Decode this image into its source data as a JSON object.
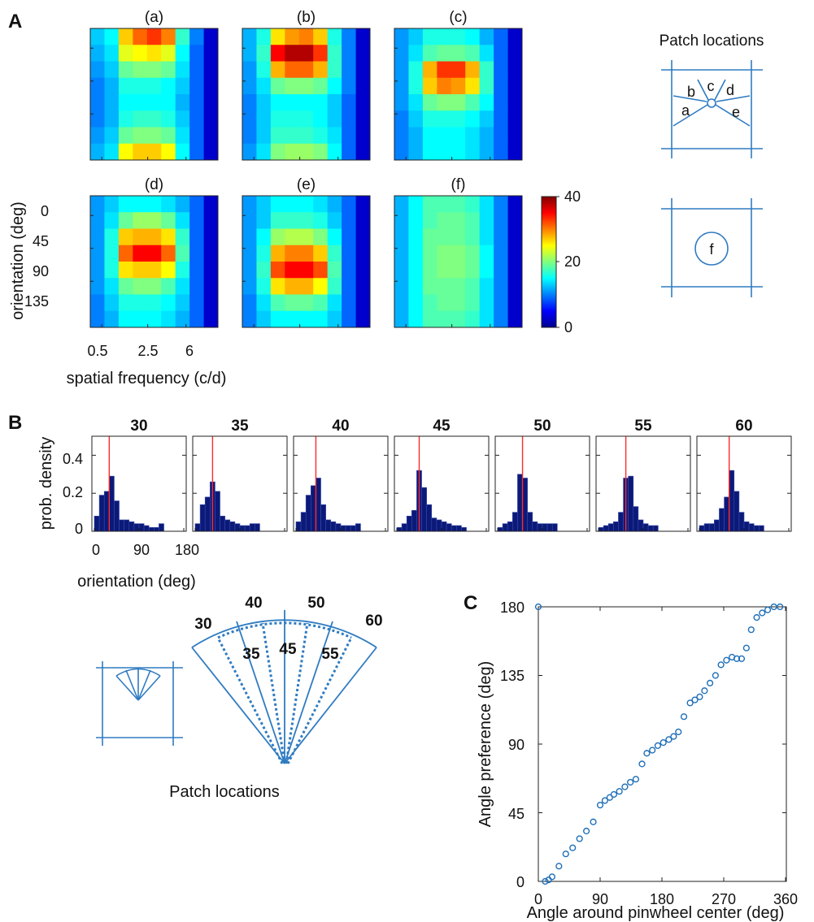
{
  "panel_labels": {
    "A": "A",
    "B": "B",
    "C": "C"
  },
  "panelA": {
    "subplot_titles": [
      "(a)",
      "(b)",
      "(c)",
      "(d)",
      "(e)",
      "(f)"
    ],
    "ylabel": "orientation (deg)",
    "xlabel": "spatial frequency (c/d)",
    "yticks": [
      "0",
      "45",
      "90",
      "135"
    ],
    "xticks": [
      "0.5",
      "2.5",
      "6"
    ],
    "colorbar_ticks": [
      "40",
      "20",
      "0"
    ],
    "patch_title": "Patch locations",
    "patch_labels": [
      "a",
      "b",
      "c",
      "d",
      "e"
    ],
    "patch_label_f": "f"
  },
  "panelB": {
    "ylabel": "prob. density",
    "xlabel": "orientation (deg)",
    "yticks": [
      "0.4",
      "0.2",
      "0"
    ],
    "xticks": [
      "0",
      "90",
      "180"
    ],
    "patch_caption": "Patch locations",
    "fan_outer_labels": [
      "30",
      "40",
      "50",
      "60"
    ],
    "fan_inner_labels": [
      "35",
      "45",
      "55"
    ]
  },
  "panelC": {
    "xlabel": "Angle around pinwheel center (deg)",
    "ylabel": "Angle preference (deg)",
    "xticks": [
      "0",
      "90",
      "180",
      "270",
      "360"
    ],
    "yticks": [
      "180",
      "135",
      "90",
      "45",
      "0"
    ]
  },
  "colors": {
    "line": "#2f7bc1",
    "bar": "#0b1a78",
    "marker": "#1f6fb8",
    "preferred": "#ff2a2a"
  },
  "chart_data": [
    {
      "type": "heatmap",
      "id": "A",
      "value_range": [
        0,
        40
      ],
      "colormap": "jet",
      "x": [
        "0.5",
        "2.5",
        "6"
      ],
      "y_range": [
        0,
        180
      ],
      "maps": [
        {
          "title": "(a)",
          "values": [
            [
              13,
              15,
              27,
              31,
              33,
              30,
              17,
              10,
              3
            ],
            [
              12,
              14,
              24,
              25,
              26,
              24,
              15,
              9,
              3
            ],
            [
              11,
              13,
              19,
              20,
              20,
              19,
              14,
              9,
              3
            ],
            [
              10,
              12,
              16,
              16,
              16,
              15,
              13,
              9,
              3
            ],
            [
              10,
              12,
              15,
              15,
              15,
              15,
              12,
              9,
              3
            ],
            [
              10,
              12,
              16,
              17,
              17,
              16,
              13,
              9,
              3
            ],
            [
              11,
              13,
              19,
              20,
              20,
              19,
              14,
              9,
              3
            ],
            [
              12,
              14,
              25,
              27,
              27,
              25,
              15,
              9,
              3
            ]
          ]
        },
        {
          "title": "(b)",
          "values": [
            [
              12,
              16,
              26,
              29,
              30,
              27,
              16,
              10,
              3
            ],
            [
              12,
              17,
              35,
              38,
              38,
              33,
              17,
              10,
              3
            ],
            [
              11,
              16,
              28,
              31,
              31,
              28,
              17,
              10,
              3
            ],
            [
              11,
              14,
              19,
              20,
              20,
              19,
              15,
              10,
              3
            ],
            [
              10,
              13,
              15,
              15,
              15,
              15,
              13,
              9,
              3
            ],
            [
              10,
              13,
              16,
              16,
              16,
              15,
              13,
              9,
              3
            ],
            [
              10,
              13,
              17,
              17,
              17,
              16,
              14,
              9,
              3
            ],
            [
              11,
              14,
              20,
              21,
              21,
              20,
              15,
              9,
              3
            ]
          ]
        },
        {
          "title": "(c)",
          "values": [
            [
              11,
              13,
              16,
              16,
              16,
              15,
              12,
              9,
              3
            ],
            [
              11,
              14,
              18,
              19,
              19,
              18,
              14,
              9,
              3
            ],
            [
              11,
              16,
              28,
              33,
              33,
              28,
              17,
              9,
              3
            ],
            [
              11,
              16,
              27,
              30,
              29,
              26,
              17,
              9,
              3
            ],
            [
              11,
              14,
              19,
              20,
              20,
              18,
              15,
              9,
              3
            ],
            [
              10,
              13,
              16,
              16,
              16,
              15,
              13,
              9,
              3
            ],
            [
              10,
              12,
              15,
              15,
              15,
              14,
              12,
              9,
              3
            ],
            [
              10,
              12,
              15,
              15,
              15,
              14,
              12,
              9,
              3
            ]
          ]
        },
        {
          "title": "(d)",
          "values": [
            [
              11,
              13,
              15,
              15,
              15,
              14,
              12,
              9,
              3
            ],
            [
              11,
              14,
              19,
              21,
              21,
              19,
              14,
              9,
              3
            ],
            [
              11,
              16,
              27,
              28,
              28,
              26,
              17,
              9,
              3
            ],
            [
              11,
              16,
              31,
              35,
              35,
              31,
              18,
              9,
              3
            ],
            [
              11,
              16,
              26,
              27,
              27,
              25,
              16,
              9,
              3
            ],
            [
              11,
              14,
              19,
              20,
              20,
              18,
              14,
              9,
              3
            ],
            [
              10,
              13,
              16,
              16,
              16,
              15,
              13,
              9,
              3
            ],
            [
              10,
              12,
              15,
              15,
              15,
              14,
              12,
              9,
              3
            ]
          ]
        },
        {
          "title": "(e)",
          "values": [
            [
              11,
              13,
              15,
              15,
              15,
              14,
              12,
              9,
              3
            ],
            [
              11,
              13,
              17,
              17,
              17,
              16,
              13,
              9,
              3
            ],
            [
              11,
              15,
              21,
              22,
              22,
              20,
              15,
              9,
              3
            ],
            [
              11,
              16,
              28,
              30,
              30,
              27,
              17,
              9,
              3
            ],
            [
              11,
              17,
              32,
              35,
              35,
              32,
              18,
              9,
              3
            ],
            [
              11,
              16,
              26,
              28,
              28,
              25,
              17,
              9,
              3
            ],
            [
              10,
              14,
              18,
              19,
              19,
              18,
              14,
              9,
              3
            ],
            [
              10,
              13,
              15,
              15,
              15,
              15,
              13,
              9,
              3
            ]
          ]
        },
        {
          "title": "(f)",
          "values": [
            [
              12,
              15,
              18,
              18,
              18,
              17,
              14,
              10,
              3
            ],
            [
              12,
              15,
              18,
              19,
              19,
              18,
              14,
              10,
              3
            ],
            [
              12,
              15,
              19,
              19,
              19,
              18,
              14,
              10,
              3
            ],
            [
              12,
              15,
              19,
              20,
              20,
              19,
              15,
              10,
              3
            ],
            [
              12,
              15,
              19,
              20,
              20,
              19,
              15,
              10,
              3
            ],
            [
              12,
              15,
              19,
              19,
              19,
              18,
              14,
              10,
              3
            ],
            [
              12,
              15,
              18,
              19,
              19,
              18,
              14,
              10,
              3
            ],
            [
              12,
              15,
              18,
              18,
              18,
              17,
              14,
              10,
              3
            ]
          ]
        }
      ]
    },
    {
      "type": "bar",
      "id": "B",
      "xlabel": "orientation (deg)",
      "ylabel": "prob. density",
      "xlim": [
        0,
        180
      ],
      "ylim": [
        0,
        0.5
      ],
      "bin_width": 10,
      "histograms": [
        {
          "title": "30",
          "preferred": 30,
          "values": [
            0.08,
            0.19,
            0.21,
            0.29,
            0.16,
            0.06,
            0.06,
            0.05,
            0.04,
            0.04,
            0.03,
            0.02,
            0.02,
            0.04
          ]
        },
        {
          "title": "35",
          "preferred": 35,
          "values": [
            0.04,
            0.14,
            0.18,
            0.26,
            0.21,
            0.08,
            0.06,
            0.05,
            0.04,
            0.03,
            0.03,
            0.04,
            0.04
          ]
        },
        {
          "title": "40",
          "preferred": 40,
          "values": [
            0.05,
            0.1,
            0.19,
            0.24,
            0.28,
            0.14,
            0.06,
            0.05,
            0.04,
            0.03,
            0.03,
            0.03,
            0.04
          ]
        },
        {
          "title": "45",
          "preferred": 45,
          "values": [
            0.02,
            0.04,
            0.08,
            0.11,
            0.32,
            0.23,
            0.14,
            0.07,
            0.06,
            0.05,
            0.04,
            0.03,
            0.03,
            0.02
          ]
        },
        {
          "title": "50",
          "preferred": 50,
          "values": [
            0.02,
            0.04,
            0.05,
            0.1,
            0.3,
            0.28,
            0.1,
            0.05,
            0.04,
            0.04,
            0.04,
            0.04
          ]
        },
        {
          "title": "55",
          "preferred": 55,
          "values": [
            0.02,
            0.03,
            0.04,
            0.05,
            0.1,
            0.28,
            0.29,
            0.13,
            0.06,
            0.04,
            0.03,
            0.03
          ]
        },
        {
          "title": "60",
          "preferred": 60,
          "values": [
            0.03,
            0.04,
            0.04,
            0.06,
            0.12,
            0.18,
            0.32,
            0.21,
            0.1,
            0.05,
            0.04,
            0.03,
            0.03
          ]
        }
      ]
    },
    {
      "type": "scatter",
      "id": "C",
      "xlabel": "Angle around pinwheel center (deg)",
      "ylabel": "Angle preference (deg)",
      "xlim": [
        0,
        360
      ],
      "ylim": [
        0,
        180
      ],
      "x": [
        0,
        10,
        15,
        20,
        30,
        40,
        50,
        60,
        70,
        80,
        90,
        97,
        104,
        110,
        118,
        126,
        134,
        142,
        151,
        158,
        166,
        174,
        182,
        190,
        197,
        204,
        212,
        221,
        228,
        235,
        242,
        250,
        258,
        266,
        274,
        282,
        289,
        296,
        303,
        310,
        318,
        326,
        334,
        343,
        352
      ],
      "y": [
        180,
        0,
        1,
        3,
        10,
        18,
        22,
        28,
        33,
        39,
        50,
        53,
        55,
        57,
        59,
        62,
        65,
        67,
        77,
        84,
        86,
        89,
        91,
        93,
        95,
        98,
        108,
        117,
        119,
        121,
        125,
        130,
        135,
        142,
        145,
        147,
        146,
        146,
        153,
        165,
        173,
        176,
        178,
        180,
        180
      ]
    }
  ]
}
